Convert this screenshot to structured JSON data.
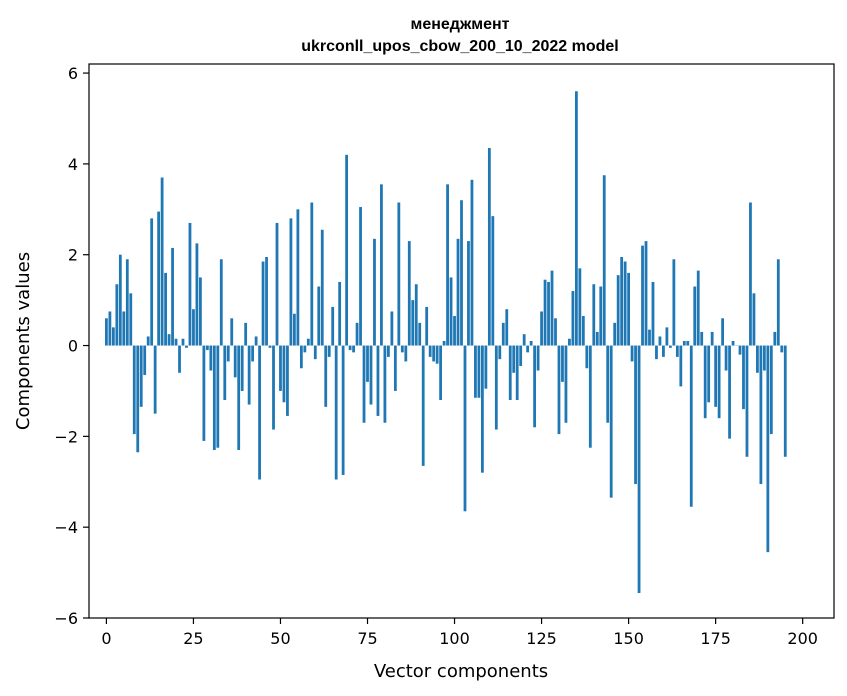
{
  "chart_data": {
    "type": "bar",
    "title": "менеджмент",
    "subtitle": "ukrconll_upos_cbow_200_10_2022 model",
    "xlabel": "Vector components",
    "ylabel": "Components values",
    "xlim": [
      -5,
      209
    ],
    "ylim": [
      -6,
      6.2
    ],
    "xticks": [
      0,
      25,
      50,
      75,
      100,
      125,
      150,
      175,
      200
    ],
    "yticks": [
      -6,
      -4,
      -2,
      0,
      2,
      4,
      6
    ],
    "ytick_labels": [
      "−6",
      "−4",
      "−2",
      "0",
      "2",
      "4",
      "6"
    ],
    "bar_color": "#1f77b4",
    "grid": false,
    "values": [
      0.6,
      0.75,
      0.4,
      1.35,
      2.0,
      0.75,
      1.9,
      1.15,
      -1.95,
      -2.35,
      -1.35,
      -0.65,
      0.2,
      2.8,
      -1.5,
      2.95,
      3.7,
      1.6,
      0.25,
      2.15,
      0.15,
      -0.6,
      0.15,
      -0.05,
      2.7,
      0.8,
      2.25,
      1.5,
      -2.1,
      -0.1,
      -0.55,
      -2.3,
      -2.25,
      1.9,
      -1.2,
      -0.35,
      0.6,
      -0.7,
      -2.3,
      -1.0,
      0.5,
      -1.3,
      -0.35,
      0.2,
      -2.95,
      1.85,
      1.95,
      -0.05,
      -1.85,
      2.7,
      -1.0,
      -1.25,
      -1.55,
      2.8,
      0.7,
      3.0,
      -0.5,
      -0.15,
      0.15,
      3.15,
      -0.3,
      1.3,
      2.55,
      -1.35,
      -0.25,
      0.85,
      -2.95,
      1.4,
      -2.85,
      4.2,
      -0.1,
      -0.15,
      0.5,
      3.05,
      -1.7,
      -0.8,
      -1.3,
      2.35,
      -1.55,
      3.55,
      -1.7,
      -0.25,
      0.75,
      -1.0,
      3.15,
      -0.15,
      -0.35,
      2.3,
      1.0,
      1.35,
      0.5,
      -2.65,
      0.85,
      -0.25,
      -0.35,
      -0.4,
      -1.2,
      0.1,
      3.55,
      1.5,
      0.65,
      2.35,
      3.2,
      -3.65,
      2.3,
      3.65,
      -1.15,
      -1.15,
      -2.8,
      -0.95,
      4.35,
      2.85,
      -1.85,
      -0.3,
      0.5,
      0.8,
      -1.2,
      -0.6,
      -1.2,
      -0.45,
      0.25,
      -0.15,
      0.1,
      -1.8,
      -0.55,
      0.75,
      1.45,
      1.4,
      1.65,
      0.6,
      -1.95,
      -0.8,
      -1.7,
      0.15,
      1.2,
      5.6,
      1.7,
      0.65,
      -0.5,
      -2.25,
      1.35,
      0.3,
      1.3,
      3.75,
      -1.7,
      -3.35,
      0.5,
      1.55,
      1.95,
      1.85,
      1.6,
      -0.35,
      -3.05,
      -5.45,
      2.2,
      2.3,
      0.35,
      1.4,
      -0.3,
      0.2,
      -0.25,
      0.4,
      -0.05,
      1.9,
      -0.25,
      -0.9,
      0.1,
      0.1,
      -3.55,
      1.3,
      1.65,
      0.3,
      -1.6,
      -1.25,
      0.3,
      -1.35,
      -1.6,
      0.6,
      -0.55,
      -2.05,
      0.1,
      0.0,
      -0.2,
      -1.4,
      -2.45,
      3.15,
      1.15,
      -0.6,
      -3.05,
      -0.55,
      -4.55,
      -1.95,
      0.3,
      1.9,
      -0.15,
      -2.45
    ]
  }
}
